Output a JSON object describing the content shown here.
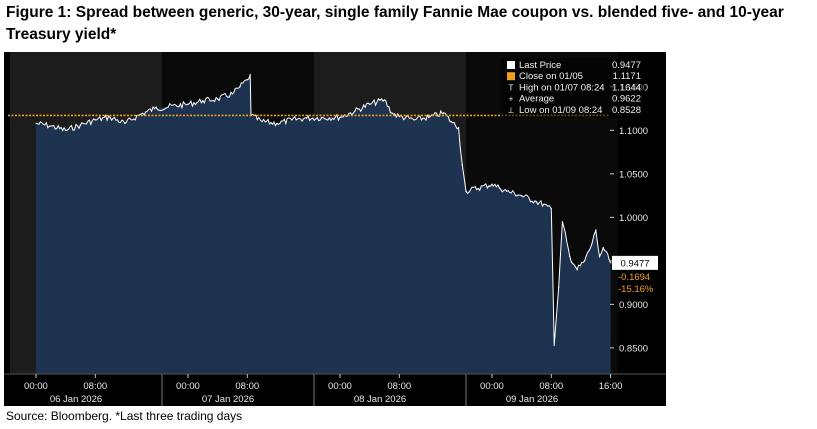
{
  "figure": {
    "title": "Figure 1: Spread between generic, 30-year, single family Fannie Mae coupon vs. blended five- and 10-year Treasury yield*",
    "source": "Source: Bloomberg. *Last three trading days"
  },
  "colors": {
    "background": "#000000",
    "session_shade": "#1c1c1c",
    "area_fill": "#1d3552",
    "price_line": "#ffffff",
    "close_line": "#f0a020",
    "change_text": "#f0a020",
    "last_price_box": "#ffffff"
  },
  "chart_data": {
    "type": "area",
    "title": "",
    "ylim": [
      0.82,
      1.19
    ],
    "yticks": [
      "1.1500",
      "1.1000",
      "1.0500",
      "1.0000",
      "0.9500",
      "0.9000",
      "0.8500"
    ],
    "xticks": [
      {
        "label": "00:00",
        "day": "06 Jan 2026"
      },
      {
        "label": "08:00",
        "day": "06 Jan 2026"
      },
      {
        "label": "00:00",
        "day": "07 Jan 2026"
      },
      {
        "label": "08:00",
        "day": "07 Jan 2026"
      },
      {
        "label": "00:00",
        "day": "08 Jan 2026"
      },
      {
        "label": "08:00",
        "day": "08 Jan 2026"
      },
      {
        "label": "00:00",
        "day": "09 Jan 2026"
      },
      {
        "label": "08:00",
        "day": "09 Jan 2026"
      },
      {
        "label": "16:00",
        "day": "09 Jan 2026"
      }
    ],
    "day_labels": [
      "06 Jan 2026",
      "07 Jan 2026",
      "08 Jan 2026",
      "09 Jan 2026"
    ],
    "close_line_value": 1.1171,
    "last_price_label": "0.9477",
    "change": "-0.1694",
    "change_pct": "-15.16%",
    "legend": [
      {
        "label": "Last Price",
        "value": "0.9477"
      },
      {
        "label": "Close on 01/05",
        "value": "1.1171"
      },
      {
        "label": "High on 01/07 08:24",
        "value": "1.1644"
      },
      {
        "label": "Average",
        "value": "0.9622"
      },
      {
        "label": "Low on 01/09 08:24",
        "value": "0.8528"
      }
    ],
    "series": [
      {
        "name": "Last Price",
        "points": [
          [
            "06 Jan 2026 00:00",
            1.108
          ],
          [
            "06 Jan 2026 02:00",
            1.105
          ],
          [
            "06 Jan 2026 04:00",
            1.1
          ],
          [
            "06 Jan 2026 06:00",
            1.106
          ],
          [
            "06 Jan 2026 08:00",
            1.112
          ],
          [
            "06 Jan 2026 10:00",
            1.115
          ],
          [
            "06 Jan 2026 12:00",
            1.108
          ],
          [
            "06 Jan 2026 14:00",
            1.118
          ],
          [
            "06 Jan 2026 16:00",
            1.125
          ],
          [
            "07 Jan 2026 00:00",
            1.13
          ],
          [
            "07 Jan 2026 02:00",
            1.134
          ],
          [
            "07 Jan 2026 04:00",
            1.136
          ],
          [
            "07 Jan 2026 06:00",
            1.142
          ],
          [
            "07 Jan 2026 07:00",
            1.15
          ],
          [
            "07 Jan 2026 08:00",
            1.158
          ],
          [
            "07 Jan 2026 08:24",
            1.164
          ],
          [
            "07 Jan 2026 08:30",
            1.117
          ],
          [
            "07 Jan 2026 10:00",
            1.11
          ],
          [
            "07 Jan 2026 12:00",
            1.108
          ],
          [
            "07 Jan 2026 14:00",
            1.112
          ],
          [
            "07 Jan 2026 16:00",
            1.114
          ],
          [
            "08 Jan 2026 00:00",
            1.115
          ],
          [
            "08 Jan 2026 02:00",
            1.122
          ],
          [
            "08 Jan 2026 04:00",
            1.13
          ],
          [
            "08 Jan 2026 06:00",
            1.135
          ],
          [
            "08 Jan 2026 07:00",
            1.12
          ],
          [
            "08 Jan 2026 08:00",
            1.116
          ],
          [
            "08 Jan 2026 10:00",
            1.112
          ],
          [
            "08 Jan 2026 12:00",
            1.115
          ],
          [
            "08 Jan 2026 14:00",
            1.12
          ],
          [
            "08 Jan 2026 15:00",
            1.11
          ],
          [
            "08 Jan 2026 16:00",
            1.103
          ],
          [
            "08 Jan 2026 16:30",
            1.06
          ],
          [
            "08 Jan 2026 17:00",
            1.03
          ],
          [
            "09 Jan 2026 00:00",
            1.038
          ],
          [
            "09 Jan 2026 01:00",
            1.034
          ],
          [
            "09 Jan 2026 02:00",
            1.03
          ],
          [
            "09 Jan 2026 04:00",
            1.025
          ],
          [
            "09 Jan 2026 06:00",
            1.018
          ],
          [
            "09 Jan 2026 07:00",
            1.015
          ],
          [
            "09 Jan 2026 07:30",
            1.013
          ],
          [
            "09 Jan 2026 08:00",
            1.01
          ],
          [
            "09 Jan 2026 08:24",
            0.853
          ],
          [
            "09 Jan 2026 09:00",
            0.92
          ],
          [
            "09 Jan 2026 09:30",
            0.995
          ],
          [
            "09 Jan 2026 10:30",
            0.955
          ],
          [
            "09 Jan 2026 11:30",
            0.94
          ],
          [
            "09 Jan 2026 12:30",
            0.95
          ],
          [
            "09 Jan 2026 13:30",
            0.97
          ],
          [
            "09 Jan 2026 14:00",
            0.985
          ],
          [
            "09 Jan 2026 14:30",
            0.955
          ],
          [
            "09 Jan 2026 15:00",
            0.965
          ],
          [
            "09 Jan 2026 16:00",
            0.948
          ]
        ]
      }
    ]
  }
}
